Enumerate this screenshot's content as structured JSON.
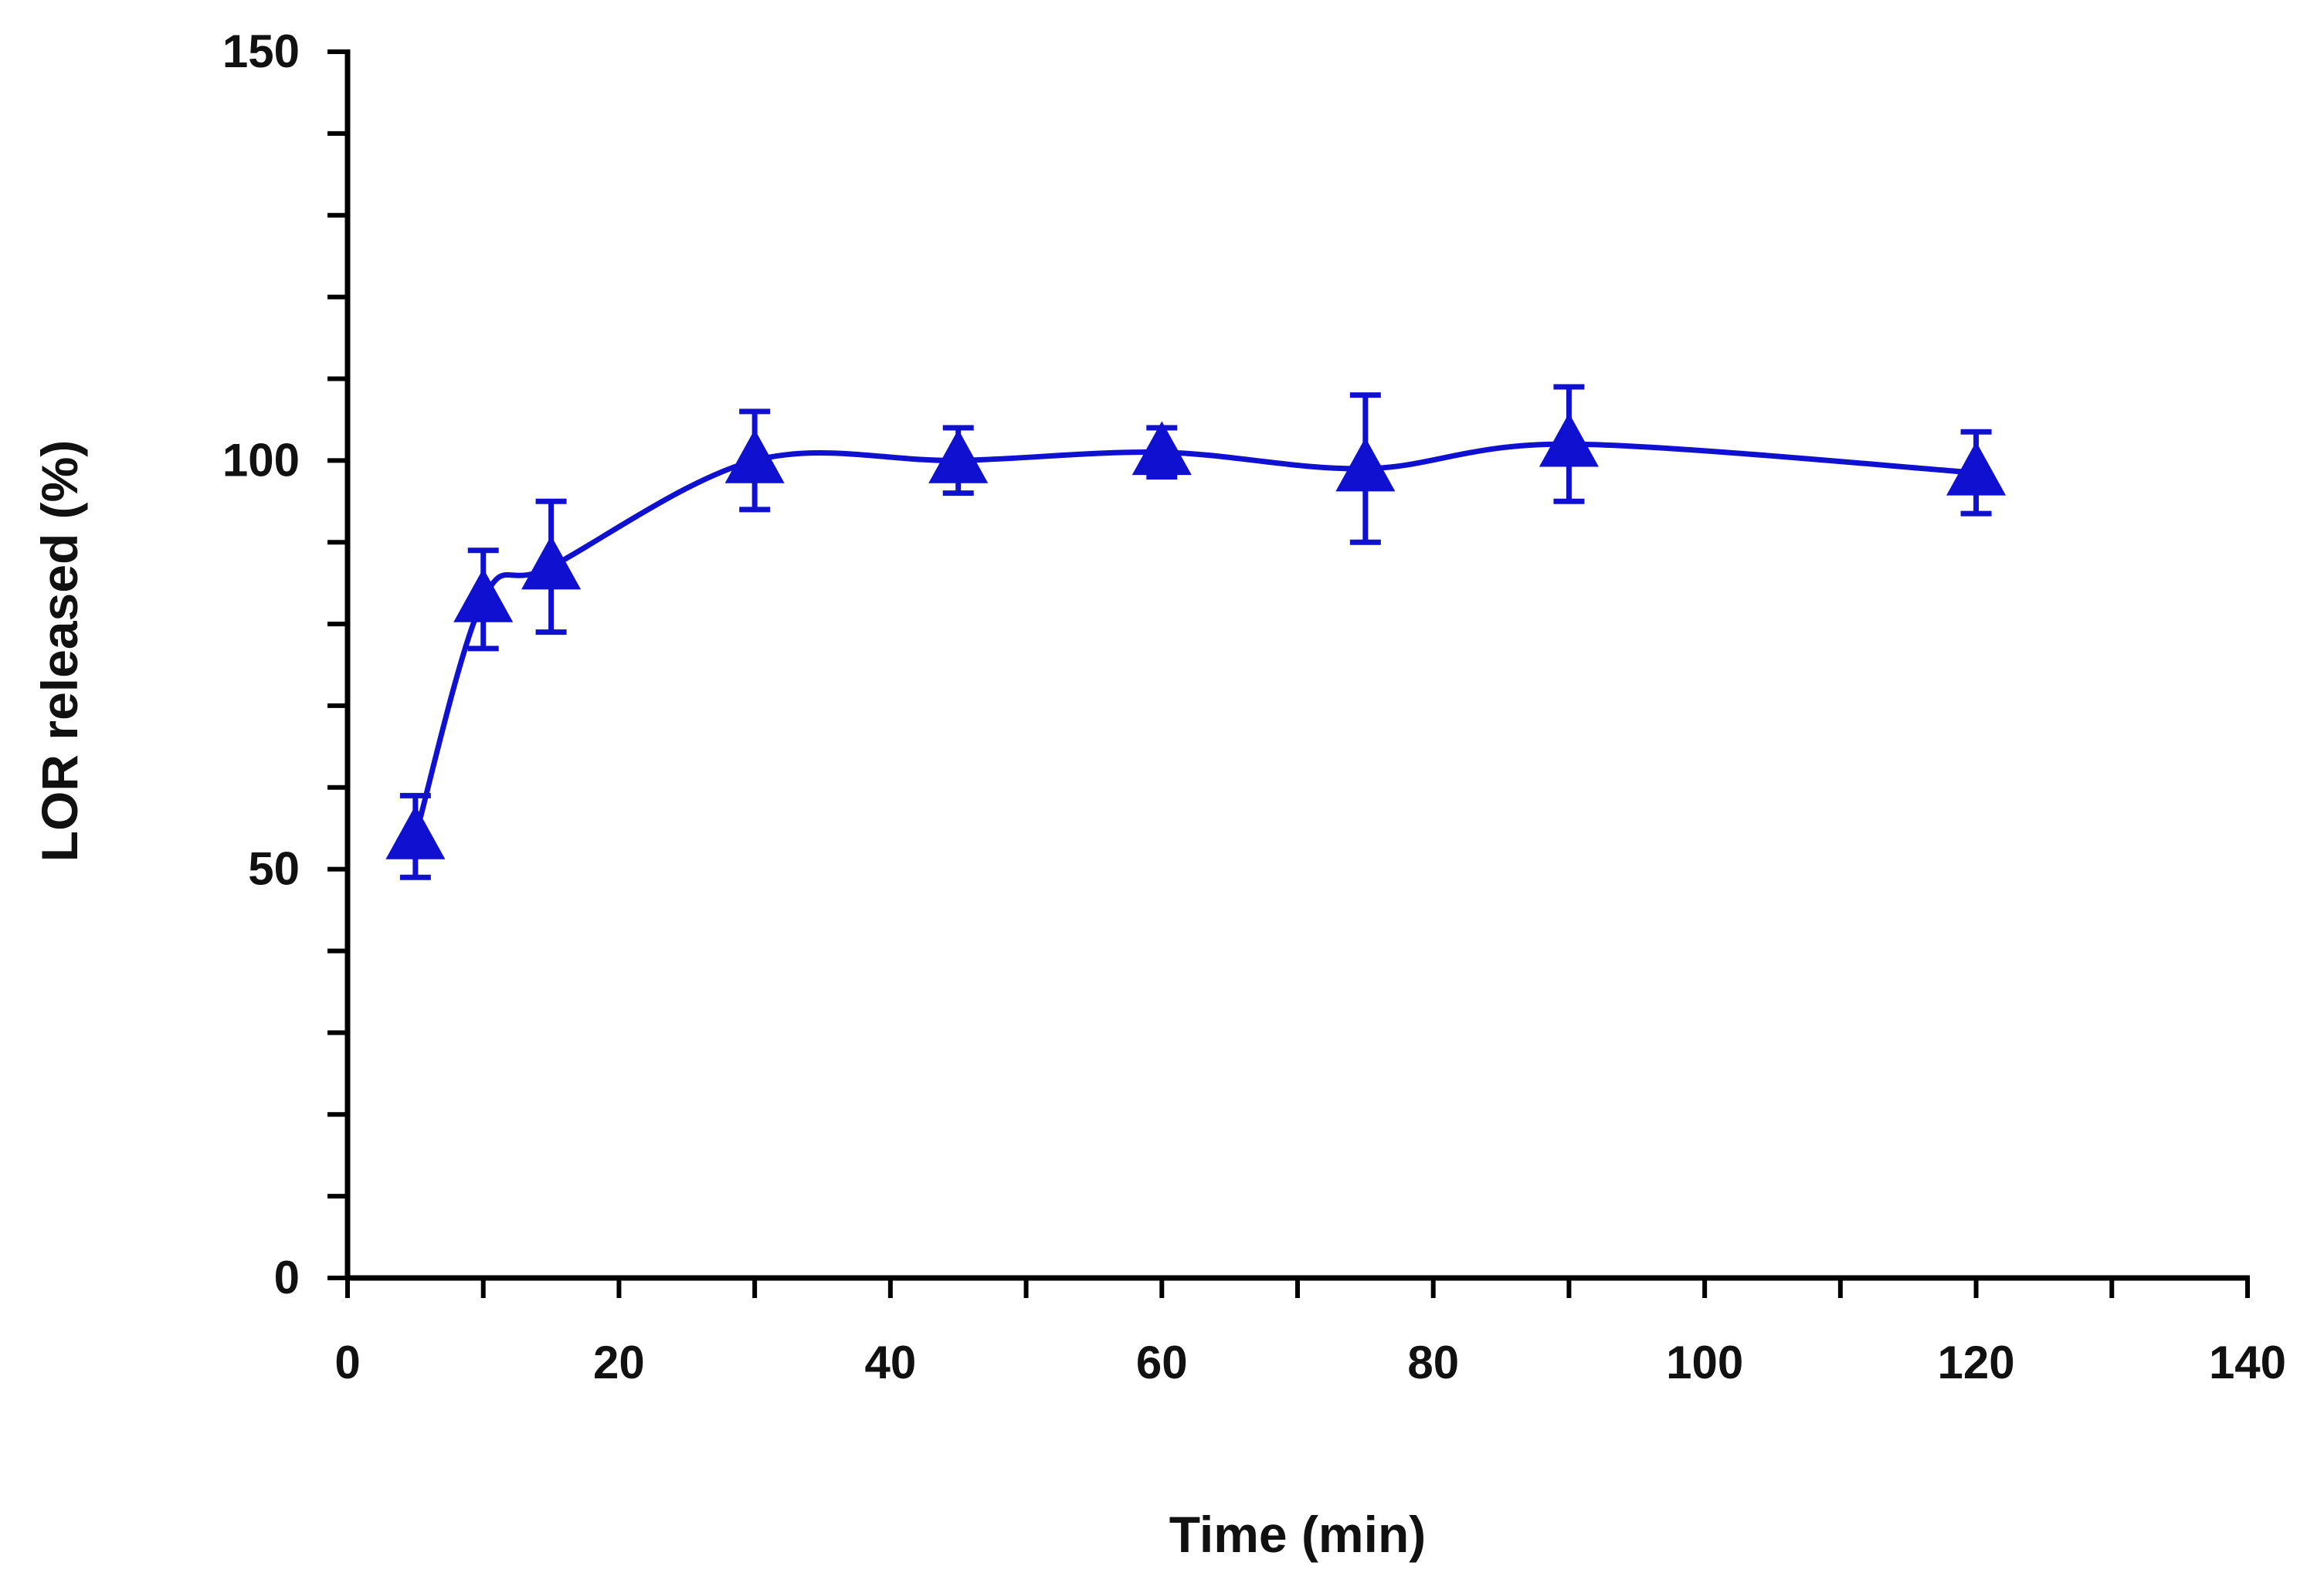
{
  "chart_data": {
    "type": "line",
    "title": "",
    "xlabel": "Time (min)",
    "ylabel": "LOR released (%)",
    "xlim": [
      0,
      140
    ],
    "ylim": [
      0,
      150
    ],
    "x_ticks": [
      0,
      20,
      40,
      60,
      80,
      100,
      120,
      140
    ],
    "x_minor_step": 10,
    "y_ticks": [
      0,
      50,
      100,
      150
    ],
    "y_minor_step": 10,
    "grid": false,
    "legend": "none",
    "series": [
      {
        "name": "LOR",
        "color": "#1010d0",
        "marker": "triangle",
        "x": [
          5,
          10,
          15,
          30,
          45,
          60,
          75,
          90,
          120
        ],
        "y": [
          54,
          83,
          87,
          100,
          100,
          101,
          99,
          102,
          98.5
        ],
        "error": [
          5,
          6,
          8,
          6,
          4,
          3,
          9,
          7,
          5
        ]
      }
    ]
  }
}
